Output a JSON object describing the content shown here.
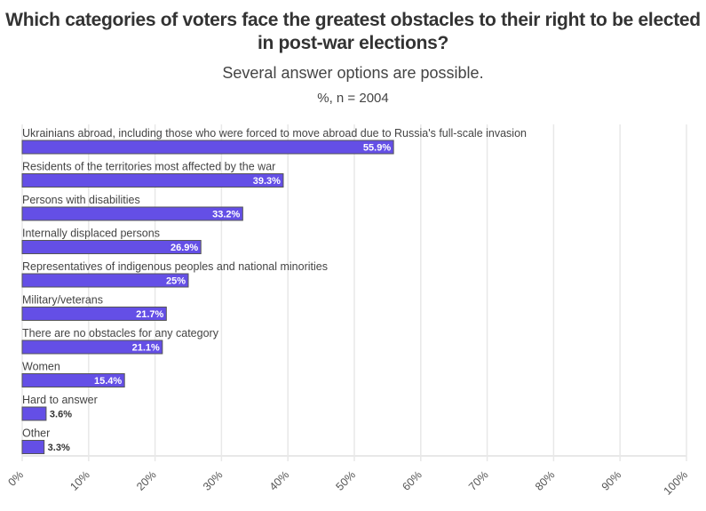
{
  "chart_data": {
    "type": "bar",
    "orientation": "horizontal",
    "title": "Which categories of voters face the greatest obstacles to their right to be elected in post-war elections?",
    "subtitle": "Several answer options are possible.",
    "note": "%, n = 2004",
    "categories": [
      "Ukrainians abroad, including those who were forced to move abroad due to Russia's full-scale invasion",
      "Residents of the territories most affected by the war",
      "Persons with disabilities",
      "Internally displaced persons",
      "Representatives of indigenous peoples and national minorities",
      "Military/veterans",
      "There are no obstacles for any category",
      "Women",
      "Hard to answer",
      "Other"
    ],
    "values": [
      55.9,
      39.3,
      33.2,
      26.9,
      25,
      21.7,
      21.1,
      15.4,
      3.6,
      3.3
    ],
    "value_labels": [
      "55.9%",
      "39.3%",
      "33.2%",
      "26.9%",
      "25%",
      "21.7%",
      "21.1%",
      "15.4%",
      "3.6%",
      "3.3%"
    ],
    "xlim": [
      0,
      100
    ],
    "x_ticks": [
      "0%",
      "10%",
      "20%",
      "30%",
      "40%",
      "50%",
      "60%",
      "70%",
      "80%",
      "90%",
      "100%"
    ],
    "xlabel": "",
    "ylabel": "",
    "grid": true,
    "bar_color": "#644fe6",
    "bar_border_color": "#555555"
  }
}
